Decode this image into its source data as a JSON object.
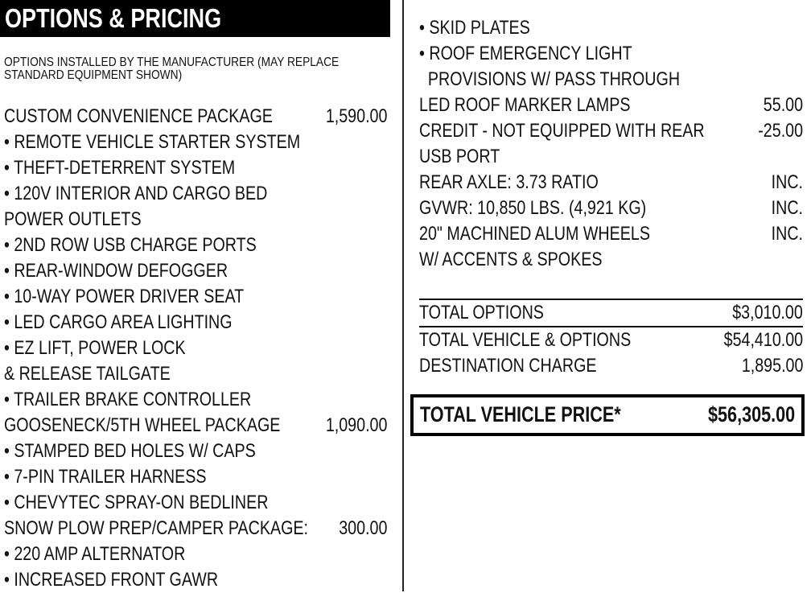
{
  "header": {
    "title": "OPTIONS & PRICING"
  },
  "note": {
    "line1": "OPTIONS INSTALLED BY THE MANUFACTURER (MAY REPLACE",
    "line2": "STANDARD EQUIPMENT SHOWN)"
  },
  "left_lines": [
    {
      "text": "CUSTOM CONVENIENCE PACKAGE",
      "price": "1,590.00"
    },
    {
      "text": "• REMOTE VEHICLE STARTER SYSTEM",
      "price": ""
    },
    {
      "text": "• THEFT-DETERRENT SYSTEM",
      "price": ""
    },
    {
      "text": "• 120V INTERIOR AND CARGO BED",
      "price": ""
    },
    {
      "text": "POWER OUTLETS",
      "price": ""
    },
    {
      "text": "• 2ND ROW USB CHARGE PORTS",
      "price": ""
    },
    {
      "text": "• REAR-WINDOW DEFOGGER",
      "price": ""
    },
    {
      "text": "• 10-WAY POWER DRIVER SEAT",
      "price": ""
    },
    {
      "text": "• LED CARGO AREA LIGHTING",
      "price": ""
    },
    {
      "text": "• EZ LIFT, POWER LOCK",
      "price": ""
    },
    {
      "text": "& RELEASE TAILGATE",
      "price": ""
    },
    {
      "text": "• TRAILER BRAKE CONTROLLER",
      "price": ""
    },
    {
      "text": "GOOSENECK/5TH WHEEL PACKAGE",
      "price": "1,090.00"
    },
    {
      "text": "• STAMPED BED HOLES W/ CAPS",
      "price": ""
    },
    {
      "text": "• 7-PIN TRAILER HARNESS",
      "price": ""
    },
    {
      "text": "• CHEVYTEC SPRAY-ON BEDLINER",
      "price": ""
    },
    {
      "text": "SNOW PLOW PREP/CAMPER PACKAGE:",
      "price": "300.00"
    },
    {
      "text": "• 220 AMP ALTERNATOR",
      "price": ""
    },
    {
      "text": "• INCREASED FRONT GAWR",
      "price": ""
    }
  ],
  "right_lines": [
    {
      "text": "• SKID PLATES",
      "price": ""
    },
    {
      "text": "• ROOF EMERGENCY LIGHT",
      "price": ""
    },
    {
      "text": "  PROVISIONS W/ PASS THROUGH",
      "price": ""
    },
    {
      "text": "LED ROOF MARKER LAMPS",
      "price": "55.00"
    },
    {
      "text": "CREDIT - NOT EQUIPPED WITH REAR",
      "price": "-25.00"
    },
    {
      "text": "USB PORT",
      "price": ""
    },
    {
      "text": "REAR AXLE: 3.73 RATIO",
      "price": "INC."
    },
    {
      "text": "GVWR: 10,850 LBS. (4,921 KG)",
      "price": "INC."
    },
    {
      "text": "20\" MACHINED ALUM WHEELS",
      "price": "INC."
    },
    {
      "text": "W/ ACCENTS & SPOKES",
      "price": ""
    }
  ],
  "totals": [
    {
      "text": "TOTAL OPTIONS",
      "price": "$3,010.00"
    },
    {
      "text": "TOTAL VEHICLE & OPTIONS",
      "price": "$54,410.00"
    },
    {
      "text": "DESTINATION CHARGE",
      "price": "1,895.00"
    }
  ],
  "grand_total": {
    "label": "TOTAL VEHICLE PRICE*",
    "value": "$56,305.00"
  }
}
